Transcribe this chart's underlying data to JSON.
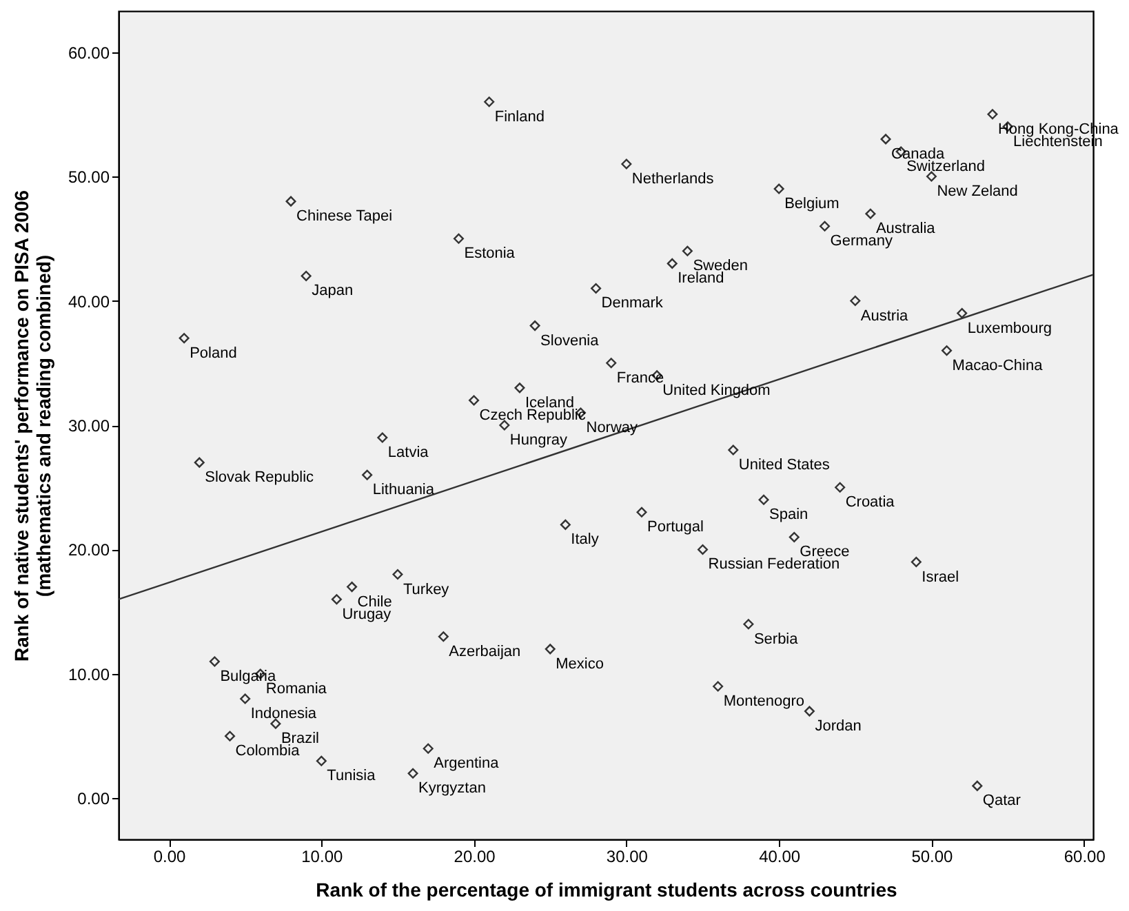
{
  "chart_data": {
    "type": "scatter",
    "xlabel": "Rank of the percentage of immigrant students across countries",
    "ylabel": "Rank of native students' performance on PISA 2006\n(mathematics and reading combined)",
    "xlim": [
      -3.3,
      60.6
    ],
    "ylim": [
      -3.3,
      63.3
    ],
    "xticks": [
      {
        "value": 0,
        "label": "0.00"
      },
      {
        "value": 10,
        "label": "10.00"
      },
      {
        "value": 20,
        "label": "20.00"
      },
      {
        "value": 30,
        "label": "30.00"
      },
      {
        "value": 40,
        "label": "40.00"
      },
      {
        "value": 50,
        "label": "50.00"
      },
      {
        "value": 60,
        "label": "60.00"
      }
    ],
    "yticks": [
      {
        "value": 0,
        "label": "0.00"
      },
      {
        "value": 10,
        "label": "10.00"
      },
      {
        "value": 20,
        "label": "20.00"
      },
      {
        "value": 30,
        "label": "30.00"
      },
      {
        "value": 40,
        "label": "40.00"
      },
      {
        "value": 50,
        "label": "50.00"
      },
      {
        "value": 60,
        "label": "60.00"
      }
    ],
    "grid": false,
    "marker": "diamond",
    "series": [
      {
        "color": "#333333",
        "x": [
          21,
          8,
          19,
          9,
          24,
          1,
          23,
          20,
          14,
          22,
          27,
          2,
          13,
          28,
          29,
          30,
          33,
          34,
          40,
          43,
          46,
          47,
          48,
          50,
          54,
          55,
          45,
          52,
          51,
          32,
          37,
          39,
          44,
          31,
          41,
          35,
          49,
          38,
          36,
          42,
          53,
          26,
          15,
          12,
          11,
          18,
          25,
          3,
          6,
          5,
          7,
          4,
          10,
          17,
          16
        ],
        "values": [
          56,
          48,
          45,
          42,
          38,
          37,
          33,
          32,
          29,
          30,
          31,
          27,
          26,
          41,
          35,
          51,
          43,
          44,
          49,
          46,
          47,
          53,
          52,
          50,
          55,
          54,
          40,
          39,
          36,
          34,
          28,
          24,
          25,
          23,
          21,
          20,
          19,
          14,
          9,
          7,
          1,
          22,
          18,
          17,
          16,
          13,
          12,
          11,
          10,
          8,
          6,
          5,
          3,
          4,
          2
        ]
      },
      {
        "type": "line",
        "color": "#333333",
        "marker": "none",
        "x": [
          -3.3,
          60.6
        ],
        "values": [
          16.0,
          42.1
        ]
      }
    ],
    "annotations": [
      {
        "text": "Finland",
        "x": 21,
        "y": 56
      },
      {
        "text": "Chinese Tapei",
        "x": 8,
        "y": 48
      },
      {
        "text": "Estonia",
        "x": 19,
        "y": 45
      },
      {
        "text": "Japan",
        "x": 9,
        "y": 42
      },
      {
        "text": "Slovenia",
        "x": 24,
        "y": 38
      },
      {
        "text": "Poland",
        "x": 1,
        "y": 37
      },
      {
        "text": "Iceland",
        "x": 23,
        "y": 33
      },
      {
        "text": "Czech Republic",
        "x": 20,
        "y": 32
      },
      {
        "text": "Latvia",
        "x": 14,
        "y": 29
      },
      {
        "text": "Hungray",
        "x": 22,
        "y": 30
      },
      {
        "text": "Norway",
        "x": 27,
        "y": 31
      },
      {
        "text": "Slovak Republic",
        "x": 2,
        "y": 27
      },
      {
        "text": "Lithuania",
        "x": 13,
        "y": 26
      },
      {
        "text": "Denmark",
        "x": 28,
        "y": 41
      },
      {
        "text": "France",
        "x": 29,
        "y": 35
      },
      {
        "text": "Netherlands",
        "x": 30,
        "y": 51
      },
      {
        "text": "Ireland",
        "x": 33,
        "y": 43
      },
      {
        "text": "Sweden",
        "x": 34,
        "y": 44
      },
      {
        "text": "Belgium",
        "x": 40,
        "y": 49
      },
      {
        "text": "Germany",
        "x": 43,
        "y": 46
      },
      {
        "text": "Australia",
        "x": 46,
        "y": 47
      },
      {
        "text": "Canada",
        "x": 47,
        "y": 53
      },
      {
        "text": "Switzerland",
        "x": 48,
        "y": 52
      },
      {
        "text": "New Zeland",
        "x": 50,
        "y": 50
      },
      {
        "text": "Hong Kong-China",
        "x": 54,
        "y": 55
      },
      {
        "text": "Liechtenstein",
        "x": 55,
        "y": 54
      },
      {
        "text": "Austria",
        "x": 45,
        "y": 40
      },
      {
        "text": "Luxembourg",
        "x": 52,
        "y": 39
      },
      {
        "text": "Macao-China",
        "x": 51,
        "y": 36
      },
      {
        "text": "United Kingdom",
        "x": 32,
        "y": 34
      },
      {
        "text": "United States",
        "x": 37,
        "y": 28
      },
      {
        "text": "Spain",
        "x": 39,
        "y": 24
      },
      {
        "text": "Croatia",
        "x": 44,
        "y": 25
      },
      {
        "text": "Portugal",
        "x": 31,
        "y": 23
      },
      {
        "text": "Greece",
        "x": 41,
        "y": 21
      },
      {
        "text": "Russian Federation",
        "x": 35,
        "y": 20
      },
      {
        "text": "Israel",
        "x": 49,
        "y": 19
      },
      {
        "text": "Serbia",
        "x": 38,
        "y": 14
      },
      {
        "text": "Montenogro",
        "x": 36,
        "y": 9
      },
      {
        "text": "Jordan",
        "x": 42,
        "y": 7
      },
      {
        "text": "Qatar",
        "x": 53,
        "y": 1
      },
      {
        "text": "Italy",
        "x": 26,
        "y": 22
      },
      {
        "text": "Turkey",
        "x": 15,
        "y": 18
      },
      {
        "text": "Chile",
        "x": 12,
        "y": 17
      },
      {
        "text": "Urugay",
        "x": 11,
        "y": 16
      },
      {
        "text": "Azerbaijan",
        "x": 18,
        "y": 13
      },
      {
        "text": "Mexico",
        "x": 25,
        "y": 12
      },
      {
        "text": "Bulgaria",
        "x": 3,
        "y": 11
      },
      {
        "text": "Romania",
        "x": 6,
        "y": 10
      },
      {
        "text": "Indonesia",
        "x": 5,
        "y": 8
      },
      {
        "text": "Brazil",
        "x": 7,
        "y": 6
      },
      {
        "text": "Colombia",
        "x": 4,
        "y": 5
      },
      {
        "text": "Tunisia",
        "x": 10,
        "y": 3
      },
      {
        "text": "Argentina",
        "x": 17,
        "y": 4
      },
      {
        "text": "Kyrgyztan",
        "x": 16,
        "y": 2
      }
    ]
  }
}
